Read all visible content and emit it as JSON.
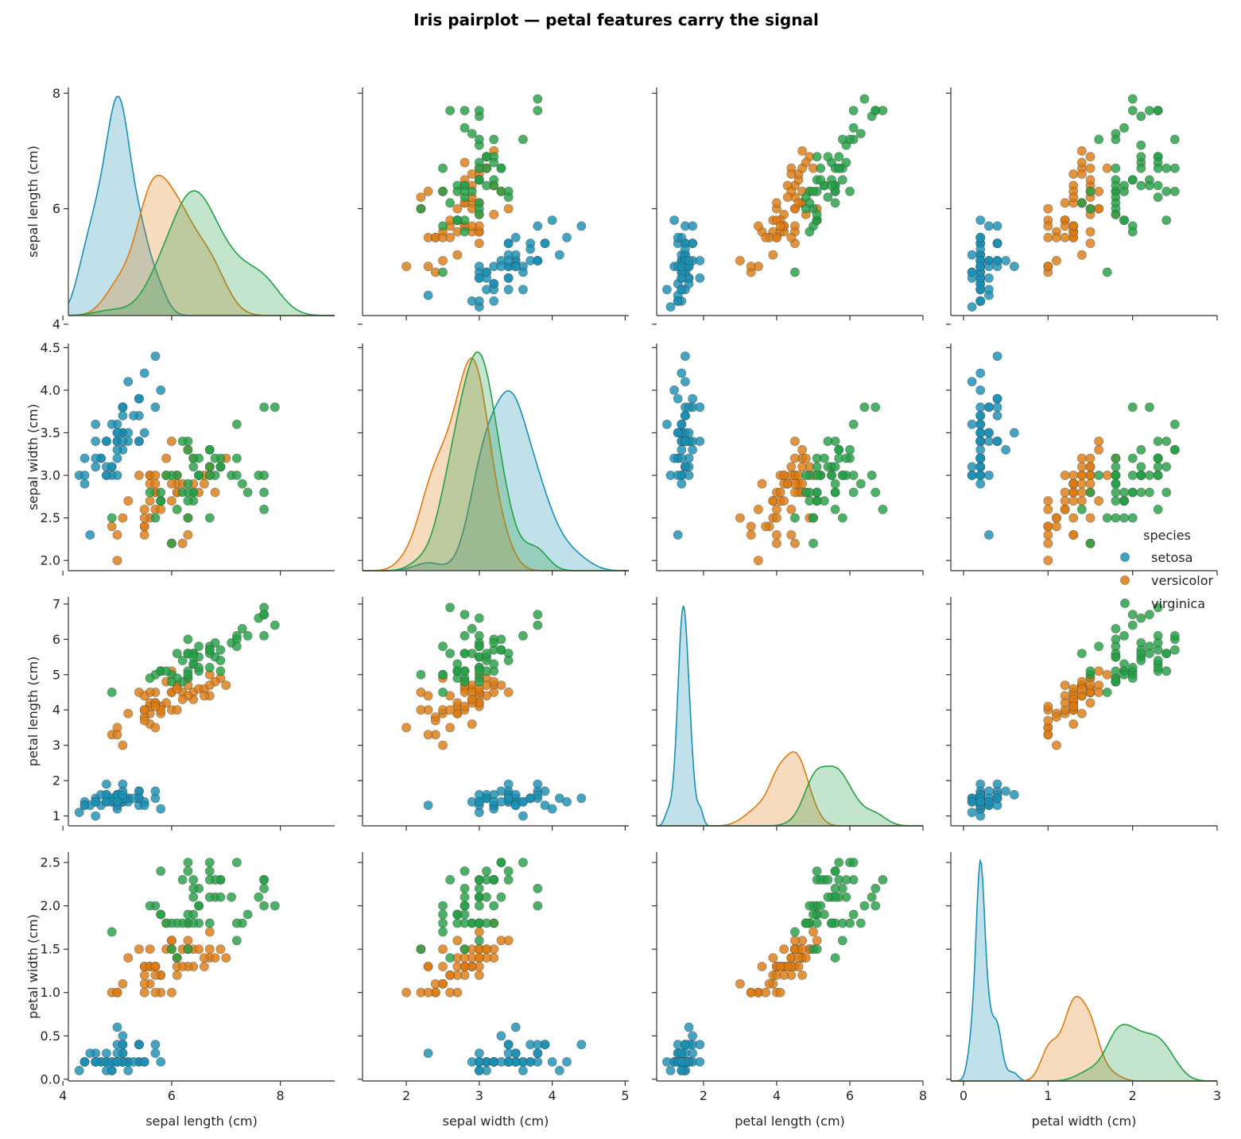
{
  "chart_data": {
    "type": "scatter",
    "title": "Iris pairplot — petal features carry the signal",
    "variables": [
      {
        "key": "sl",
        "label": "sepal length (cm)",
        "range": [
          4.1,
          9.0
        ],
        "ticks": [
          4,
          6,
          8
        ],
        "tick_labels": [
          "4",
          "6",
          "8"
        ]
      },
      {
        "key": "sw",
        "label": "sepal width (cm)",
        "range": [
          1.4,
          5.05
        ],
        "ticks": [
          2.0,
          2.5,
          3.0,
          3.5,
          4.0,
          4.5
        ],
        "tick_labels": [
          "2.0",
          "2.5",
          "3.0",
          "3.5",
          "4.0",
          "4.5"
        ],
        "x_ticks": [
          2,
          3,
          4,
          5
        ],
        "x_tick_labels": [
          "2",
          "3",
          "4",
          "5"
        ]
      },
      {
        "key": "pl",
        "label": "petal length (cm)",
        "range": [
          0.72,
          8.0
        ],
        "ticks": [
          1,
          2,
          3,
          4,
          5,
          6,
          7
        ],
        "tick_labels": [
          "1",
          "2",
          "3",
          "4",
          "5",
          "6",
          "7"
        ],
        "x_ticks": [
          2,
          4,
          6,
          8
        ],
        "x_tick_labels": [
          "2",
          "4",
          "6",
          "8"
        ]
      },
      {
        "key": "pw",
        "label": "petal width (cm)",
        "range": [
          -0.15,
          3.0
        ],
        "ticks": [
          0.0,
          0.5,
          1.0,
          1.5,
          2.0,
          2.5
        ],
        "tick_labels": [
          "0.0",
          "0.5",
          "1.0",
          "1.5",
          "2.0",
          "2.5"
        ],
        "x_ticks": [
          0,
          1,
          2,
          3
        ],
        "x_tick_labels": [
          "0",
          "1",
          "2",
          "3"
        ]
      }
    ],
    "sepal_length_y_range": [
      4.15,
      8.1
    ],
    "sepal_width_y_range": [
      1.88,
      4.55
    ],
    "petal_length_y_range": [
      0.72,
      7.2
    ],
    "petal_width_y_range": [
      -0.02,
      2.62
    ],
    "legend": {
      "title": "species",
      "placement": "right",
      "entries": [
        "setosa",
        "versicolor",
        "virginica"
      ]
    },
    "series": [
      {
        "name": "setosa",
        "color": "#1a8fb3",
        "points": [
          [
            5.1,
            3.5,
            1.4,
            0.2
          ],
          [
            4.9,
            3.0,
            1.4,
            0.2
          ],
          [
            4.7,
            3.2,
            1.3,
            0.2
          ],
          [
            4.6,
            3.1,
            1.5,
            0.2
          ],
          [
            5.0,
            3.6,
            1.4,
            0.2
          ],
          [
            5.4,
            3.9,
            1.7,
            0.4
          ],
          [
            4.6,
            3.4,
            1.4,
            0.3
          ],
          [
            5.0,
            3.4,
            1.5,
            0.2
          ],
          [
            4.4,
            2.9,
            1.4,
            0.2
          ],
          [
            4.9,
            3.1,
            1.5,
            0.1
          ],
          [
            5.4,
            3.7,
            1.5,
            0.2
          ],
          [
            4.8,
            3.4,
            1.6,
            0.2
          ],
          [
            4.8,
            3.0,
            1.4,
            0.1
          ],
          [
            4.3,
            3.0,
            1.1,
            0.1
          ],
          [
            5.8,
            4.0,
            1.2,
            0.2
          ],
          [
            5.7,
            4.4,
            1.5,
            0.4
          ],
          [
            5.4,
            3.9,
            1.3,
            0.4
          ],
          [
            5.1,
            3.5,
            1.4,
            0.3
          ],
          [
            5.7,
            3.8,
            1.7,
            0.3
          ],
          [
            5.1,
            3.8,
            1.5,
            0.3
          ],
          [
            5.4,
            3.4,
            1.7,
            0.2
          ],
          [
            5.1,
            3.7,
            1.5,
            0.4
          ],
          [
            4.6,
            3.6,
            1.0,
            0.2
          ],
          [
            5.1,
            3.3,
            1.7,
            0.5
          ],
          [
            4.8,
            3.4,
            1.9,
            0.2
          ],
          [
            5.0,
            3.0,
            1.6,
            0.2
          ],
          [
            5.0,
            3.4,
            1.6,
            0.4
          ],
          [
            5.2,
            3.5,
            1.5,
            0.2
          ],
          [
            5.2,
            3.4,
            1.4,
            0.2
          ],
          [
            4.7,
            3.2,
            1.6,
            0.2
          ],
          [
            4.8,
            3.1,
            1.6,
            0.2
          ],
          [
            5.4,
            3.4,
            1.5,
            0.4
          ],
          [
            5.2,
            4.1,
            1.5,
            0.1
          ],
          [
            5.5,
            4.2,
            1.4,
            0.2
          ],
          [
            4.9,
            3.1,
            1.5,
            0.2
          ],
          [
            5.0,
            3.2,
            1.2,
            0.2
          ],
          [
            5.5,
            3.5,
            1.3,
            0.2
          ],
          [
            4.9,
            3.6,
            1.4,
            0.1
          ],
          [
            4.4,
            3.0,
            1.3,
            0.2
          ],
          [
            5.1,
            3.4,
            1.5,
            0.2
          ],
          [
            5.0,
            3.5,
            1.3,
            0.3
          ],
          [
            4.5,
            2.3,
            1.3,
            0.3
          ],
          [
            4.4,
            3.2,
            1.3,
            0.2
          ],
          [
            5.0,
            3.5,
            1.6,
            0.6
          ],
          [
            5.1,
            3.8,
            1.9,
            0.4
          ],
          [
            4.8,
            3.0,
            1.4,
            0.3
          ],
          [
            5.1,
            3.8,
            1.6,
            0.2
          ],
          [
            4.6,
            3.2,
            1.4,
            0.2
          ],
          [
            5.3,
            3.7,
            1.5,
            0.2
          ],
          [
            5.0,
            3.3,
            1.4,
            0.2
          ]
        ]
      },
      {
        "name": "versicolor",
        "color": "#dc7b12",
        "points": [
          [
            7.0,
            3.2,
            4.7,
            1.4
          ],
          [
            6.4,
            3.2,
            4.5,
            1.5
          ],
          [
            6.9,
            3.1,
            4.9,
            1.5
          ],
          [
            5.5,
            2.3,
            4.0,
            1.3
          ],
          [
            6.5,
            2.8,
            4.6,
            1.5
          ],
          [
            5.7,
            2.8,
            4.5,
            1.3
          ],
          [
            6.3,
            3.3,
            4.7,
            1.6
          ],
          [
            4.9,
            2.4,
            3.3,
            1.0
          ],
          [
            6.6,
            2.9,
            4.6,
            1.3
          ],
          [
            5.2,
            2.7,
            3.9,
            1.4
          ],
          [
            5.0,
            2.0,
            3.5,
            1.0
          ],
          [
            5.9,
            3.0,
            4.2,
            1.5
          ],
          [
            6.0,
            2.2,
            4.0,
            1.0
          ],
          [
            6.1,
            2.9,
            4.7,
            1.4
          ],
          [
            5.6,
            2.9,
            3.6,
            1.3
          ],
          [
            6.7,
            3.1,
            4.4,
            1.4
          ],
          [
            5.6,
            3.0,
            4.5,
            1.5
          ],
          [
            5.8,
            2.7,
            4.1,
            1.0
          ],
          [
            6.2,
            2.2,
            4.5,
            1.5
          ],
          [
            5.6,
            2.5,
            3.9,
            1.1
          ],
          [
            5.9,
            3.2,
            4.8,
            1.8
          ],
          [
            6.1,
            2.8,
            4.0,
            1.3
          ],
          [
            6.3,
            2.5,
            4.9,
            1.5
          ],
          [
            6.1,
            2.8,
            4.7,
            1.2
          ],
          [
            6.4,
            2.9,
            4.3,
            1.3
          ],
          [
            6.6,
            3.0,
            4.4,
            1.4
          ],
          [
            6.8,
            2.8,
            4.8,
            1.4
          ],
          [
            6.7,
            3.0,
            5.0,
            1.7
          ],
          [
            6.0,
            2.9,
            4.5,
            1.5
          ],
          [
            5.7,
            2.6,
            3.5,
            1.0
          ],
          [
            5.5,
            2.4,
            3.8,
            1.1
          ],
          [
            5.5,
            2.4,
            3.7,
            1.0
          ],
          [
            5.8,
            2.7,
            3.9,
            1.2
          ],
          [
            6.0,
            2.7,
            5.1,
            1.6
          ],
          [
            5.4,
            3.0,
            4.5,
            1.5
          ],
          [
            6.0,
            3.4,
            4.5,
            1.6
          ],
          [
            6.7,
            3.1,
            4.7,
            1.5
          ],
          [
            6.3,
            2.3,
            4.4,
            1.3
          ],
          [
            5.6,
            3.0,
            4.1,
            1.3
          ],
          [
            5.5,
            2.5,
            4.0,
            1.3
          ],
          [
            5.5,
            2.6,
            4.4,
            1.2
          ],
          [
            6.1,
            3.0,
            4.6,
            1.4
          ],
          [
            5.8,
            2.6,
            4.0,
            1.2
          ],
          [
            5.0,
            2.3,
            3.3,
            1.0
          ],
          [
            5.6,
            2.7,
            4.2,
            1.3
          ],
          [
            5.7,
            3.0,
            4.2,
            1.2
          ],
          [
            5.7,
            2.9,
            4.2,
            1.3
          ],
          [
            6.2,
            2.9,
            4.3,
            1.3
          ],
          [
            5.1,
            2.5,
            3.0,
            1.1
          ],
          [
            5.7,
            2.8,
            4.1,
            1.3
          ]
        ]
      },
      {
        "name": "virginica",
        "color": "#24a046",
        "points": [
          [
            6.3,
            3.3,
            6.0,
            2.5
          ],
          [
            5.8,
            2.7,
            5.1,
            1.9
          ],
          [
            7.1,
            3.0,
            5.9,
            2.1
          ],
          [
            6.3,
            2.9,
            5.6,
            1.8
          ],
          [
            6.5,
            3.0,
            5.8,
            2.2
          ],
          [
            7.6,
            3.0,
            6.6,
            2.1
          ],
          [
            4.9,
            2.5,
            4.5,
            1.7
          ],
          [
            7.3,
            2.9,
            6.3,
            1.8
          ],
          [
            6.7,
            2.5,
            5.8,
            1.8
          ],
          [
            7.2,
            3.6,
            6.1,
            2.5
          ],
          [
            6.5,
            3.2,
            5.1,
            2.0
          ],
          [
            6.4,
            2.7,
            5.3,
            1.9
          ],
          [
            6.8,
            3.0,
            5.5,
            2.1
          ],
          [
            5.7,
            2.5,
            5.0,
            2.0
          ],
          [
            5.8,
            2.8,
            5.1,
            2.4
          ],
          [
            6.4,
            3.2,
            5.3,
            2.3
          ],
          [
            6.5,
            3.0,
            5.5,
            1.8
          ],
          [
            7.7,
            3.8,
            6.7,
            2.2
          ],
          [
            7.7,
            2.6,
            6.9,
            2.3
          ],
          [
            6.0,
            2.2,
            5.0,
            1.5
          ],
          [
            6.9,
            3.2,
            5.7,
            2.3
          ],
          [
            5.6,
            2.8,
            4.9,
            2.0
          ],
          [
            7.7,
            2.8,
            6.7,
            2.0
          ],
          [
            6.3,
            2.7,
            4.9,
            1.8
          ],
          [
            6.7,
            3.3,
            5.7,
            2.1
          ],
          [
            7.2,
            3.2,
            6.0,
            1.8
          ],
          [
            6.2,
            2.8,
            4.8,
            1.8
          ],
          [
            6.1,
            3.0,
            4.9,
            1.8
          ],
          [
            6.4,
            2.8,
            5.6,
            2.1
          ],
          [
            7.2,
            3.0,
            5.8,
            1.6
          ],
          [
            7.4,
            2.8,
            6.1,
            1.9
          ],
          [
            7.9,
            3.8,
            6.4,
            2.0
          ],
          [
            6.4,
            2.8,
            5.6,
            2.2
          ],
          [
            6.3,
            2.8,
            5.1,
            1.5
          ],
          [
            6.1,
            2.6,
            5.6,
            1.4
          ],
          [
            7.7,
            3.0,
            6.1,
            2.3
          ],
          [
            6.3,
            3.4,
            5.6,
            2.4
          ],
          [
            6.4,
            3.1,
            5.5,
            1.8
          ],
          [
            6.0,
            3.0,
            4.8,
            1.8
          ],
          [
            6.9,
            3.1,
            5.4,
            2.1
          ],
          [
            6.7,
            3.1,
            5.6,
            2.4
          ],
          [
            6.9,
            3.1,
            5.1,
            2.3
          ],
          [
            5.8,
            2.7,
            5.1,
            1.9
          ],
          [
            6.8,
            3.2,
            5.9,
            2.3
          ],
          [
            6.7,
            3.3,
            5.7,
            2.5
          ],
          [
            6.7,
            3.0,
            5.2,
            2.3
          ],
          [
            6.3,
            2.5,
            5.0,
            1.9
          ],
          [
            6.5,
            3.0,
            5.2,
            2.0
          ],
          [
            6.2,
            3.4,
            5.4,
            2.3
          ],
          [
            5.9,
            3.0,
            5.1,
            1.8
          ]
        ]
      }
    ]
  }
}
